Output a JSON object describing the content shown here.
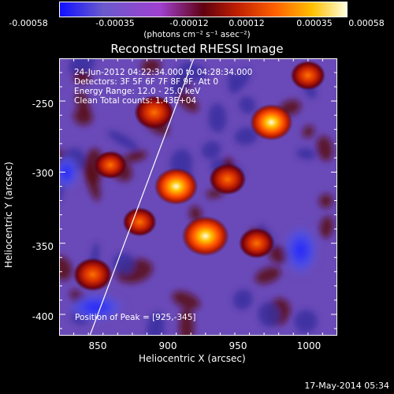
{
  "colorbar": {
    "ticks": [
      "-0.00058",
      "-0.00035",
      "-0.00012",
      "0.00012",
      "0.00035",
      "0.00058"
    ],
    "units": "(photons cm⁻² s⁻¹ asec⁻²)",
    "colors": [
      "#1010ff",
      "#6a5acd",
      "#a040d0",
      "#600010",
      "#c02000",
      "#ff6000",
      "#ffc000",
      "#ffffe0"
    ]
  },
  "chart_data": {
    "type": "heatmap",
    "title": "Reconstructed RHESSI Image",
    "xlabel": "Heliocentric X (arcsec)",
    "ylabel": "Heliocentric Y (arcsec)",
    "xlim": [
      825,
      1015
    ],
    "ylim": [
      -415,
      -220
    ],
    "xticks": [
      850,
      900,
      950,
      1000
    ],
    "yticks": [
      -250,
      -300,
      -350,
      -400
    ],
    "value_range": [
      -0.00058,
      0.00058
    ],
    "peak": {
      "x": 925,
      "y": -345
    },
    "hot_spots": [
      {
        "x": 925,
        "y": -345,
        "value": 0.00058
      },
      {
        "x": 905,
        "y": -310,
        "value": 0.0005
      },
      {
        "x": 970,
        "y": -265,
        "value": 0.00048
      },
      {
        "x": 890,
        "y": -258,
        "value": 0.00042
      },
      {
        "x": 848,
        "y": -372,
        "value": 0.0004
      },
      {
        "x": 940,
        "y": -305,
        "value": 0.00035
      },
      {
        "x": 960,
        "y": -350,
        "value": 0.00032
      },
      {
        "x": 880,
        "y": -335,
        "value": 0.00028
      },
      {
        "x": 860,
        "y": -295,
        "value": 0.00025
      },
      {
        "x": 995,
        "y": -232,
        "value": 0.0003
      }
    ],
    "annotations": [
      "24-Jun-2012 04:22:34.000 to 04:28:34.000",
      "Detectors: 3F 5F 6F 7F 8F 9F, Att 0",
      "Energy Range: 12.0 - 25.0 keV",
      "Clean    Total counts: 1.43E+04"
    ],
    "peak_label": "Position of Peak = [925,-345]"
  },
  "footer": "17-May-2014 05:34"
}
